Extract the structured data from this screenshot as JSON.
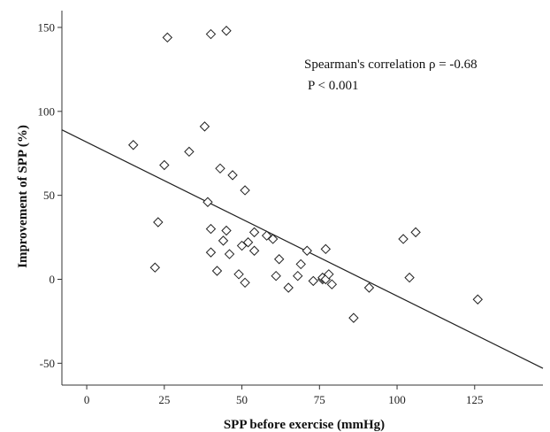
{
  "chart_data": {
    "type": "scatter",
    "xlabel": "SPP before exercise (mmHg)",
    "ylabel": "Improvement of SPP (%)",
    "xlim": [
      -8,
      147
    ],
    "ylim": [
      -63,
      160
    ],
    "xticks": [
      0,
      25,
      50,
      75,
      100,
      125
    ],
    "yticks": [
      -50,
      0,
      50,
      100,
      150
    ],
    "grid": false,
    "marker": "diamond-open",
    "annotations": [
      "Spearman's correlation ρ = -0.68",
      "P < 0.001"
    ],
    "fit_line": {
      "x": [
        -8,
        147
      ],
      "y": [
        89,
        -53
      ]
    },
    "points": [
      {
        "x": 15,
        "y": 80
      },
      {
        "x": 22,
        "y": 7
      },
      {
        "x": 23,
        "y": 34
      },
      {
        "x": 25,
        "y": 68
      },
      {
        "x": 26,
        "y": 144
      },
      {
        "x": 33,
        "y": 76
      },
      {
        "x": 38,
        "y": 91
      },
      {
        "x": 39,
        "y": 46
      },
      {
        "x": 40,
        "y": 30
      },
      {
        "x": 40,
        "y": 16
      },
      {
        "x": 40,
        "y": 146
      },
      {
        "x": 42,
        "y": 5
      },
      {
        "x": 43,
        "y": 66
      },
      {
        "x": 44,
        "y": 23
      },
      {
        "x": 45,
        "y": 29
      },
      {
        "x": 45,
        "y": 148
      },
      {
        "x": 46,
        "y": 15
      },
      {
        "x": 47,
        "y": 62
      },
      {
        "x": 49,
        "y": 3
      },
      {
        "x": 50,
        "y": 20
      },
      {
        "x": 51,
        "y": 53
      },
      {
        "x": 51,
        "y": -2
      },
      {
        "x": 52,
        "y": 22
      },
      {
        "x": 54,
        "y": 28
      },
      {
        "x": 54,
        "y": 17
      },
      {
        "x": 58,
        "y": 26
      },
      {
        "x": 60,
        "y": 24
      },
      {
        "x": 61,
        "y": 2
      },
      {
        "x": 62,
        "y": 12
      },
      {
        "x": 65,
        "y": -5
      },
      {
        "x": 68,
        "y": 2
      },
      {
        "x": 69,
        "y": 9
      },
      {
        "x": 71,
        "y": 17
      },
      {
        "x": 73,
        "y": -1
      },
      {
        "x": 76,
        "y": 0
      },
      {
        "x": 76,
        "y": 1
      },
      {
        "x": 77,
        "y": 0
      },
      {
        "x": 77,
        "y": 18
      },
      {
        "x": 78,
        "y": 3
      },
      {
        "x": 79,
        "y": -3
      },
      {
        "x": 86,
        "y": -23
      },
      {
        "x": 91,
        "y": -5
      },
      {
        "x": 102,
        "y": 24
      },
      {
        "x": 104,
        "y": 1
      },
      {
        "x": 106,
        "y": 28
      },
      {
        "x": 126,
        "y": -12
      }
    ]
  }
}
